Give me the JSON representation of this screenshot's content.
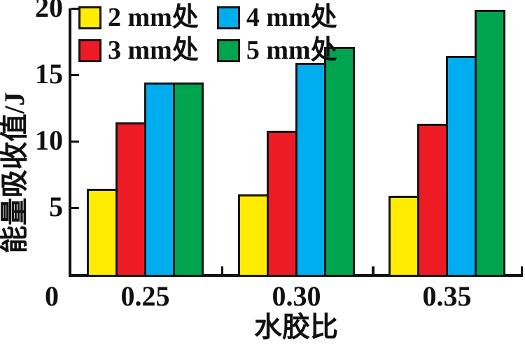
{
  "chart_data": {
    "type": "bar",
    "title": "",
    "xlabel": "水胶比",
    "ylabel": "能量吸收值/J",
    "categories": [
      "0.25",
      "0.30",
      "0.35"
    ],
    "series": [
      {
        "name": "2 mm处",
        "color": "#ffec00",
        "values": [
          6.4,
          6.0,
          5.9
        ]
      },
      {
        "name": "3 mm处",
        "color": "#ed1c24",
        "values": [
          11.4,
          10.8,
          11.3
        ]
      },
      {
        "name": "4 mm处",
        "color": "#00aeef",
        "values": [
          14.4,
          15.9,
          16.4
        ]
      },
      {
        "name": "5 mm处",
        "color": "#00a44f",
        "values": [
          14.4,
          17.1,
          19.9
        ]
      }
    ],
    "ylim": [
      0,
      20
    ],
    "yticks": [
      0,
      5,
      10,
      15,
      20
    ],
    "origin_label": "0",
    "grid": false,
    "legend_position": "top-left",
    "bar_outline_color": "#151515",
    "axis_color": "#111111"
  }
}
